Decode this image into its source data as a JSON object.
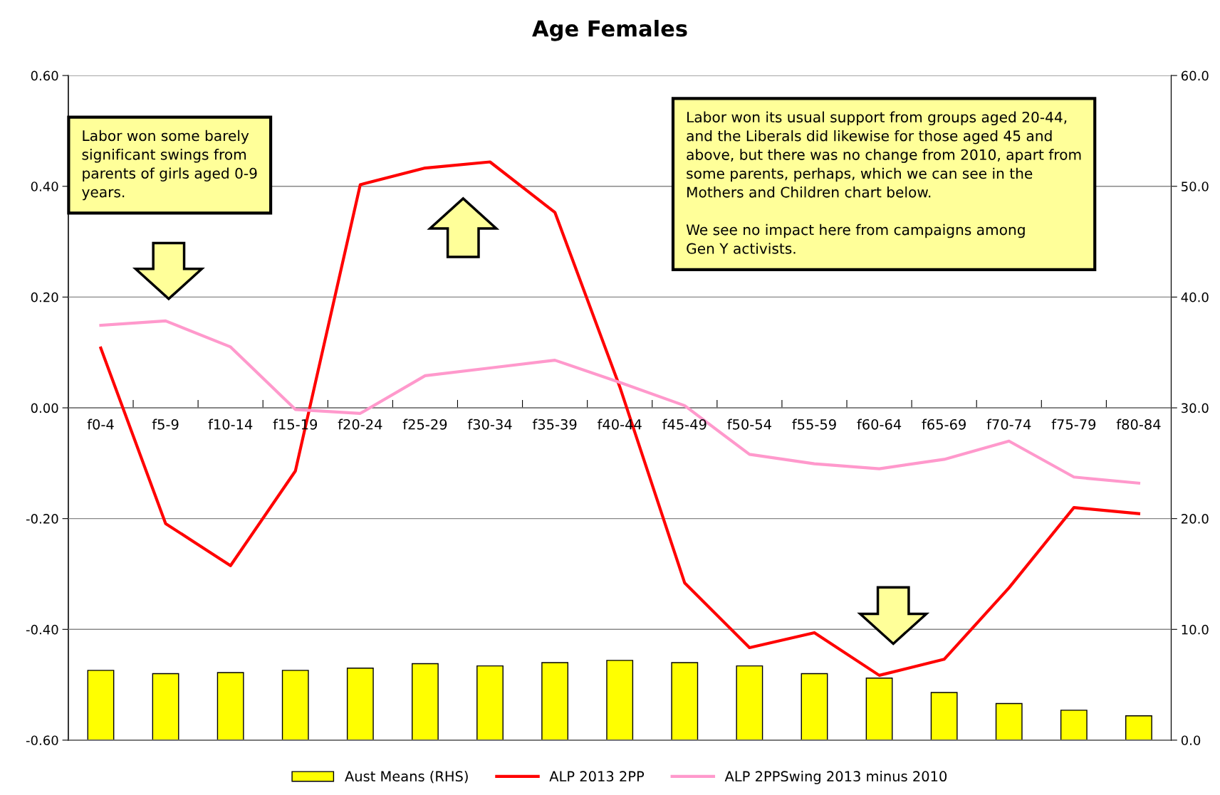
{
  "chart_data": {
    "type": "line",
    "title": "Age Females",
    "categories": [
      "f0-4",
      "f5-9",
      "f10-14",
      "f15-19",
      "f20-24",
      "f25-29",
      "f30-34",
      "f35-39",
      "f40-44",
      "f45-49",
      "f50-54",
      "f55-59",
      "f60-64",
      "f65-69",
      "f70-74",
      "f75-79",
      "f80-84"
    ],
    "series": [
      {
        "name": "Aust Means (RHS)",
        "type": "bar",
        "axis": "y2",
        "color": "#ffff00",
        "values": [
          6.3,
          6.0,
          6.1,
          6.3,
          6.5,
          6.9,
          6.7,
          7.0,
          7.2,
          7.0,
          6.7,
          6.0,
          5.6,
          4.3,
          3.3,
          2.7,
          2.2
        ]
      },
      {
        "name": "ALP 2013 2PP",
        "color": "#ff0000",
        "values": [
          0.108,
          -0.209,
          -0.285,
          -0.114,
          0.403,
          0.433,
          0.444,
          0.353,
          0.038,
          -0.316,
          -0.433,
          -0.406,
          -0.483,
          -0.454,
          -0.325,
          -0.18,
          -0.191
        ]
      },
      {
        "name": "ALP 2PPSwing 2013 minus 2010",
        "color": "#ff99cc",
        "values": [
          0.149,
          0.157,
          0.11,
          -0.003,
          -0.01,
          0.058,
          0.072,
          0.086,
          0.046,
          0.004,
          -0.084,
          -0.101,
          -0.11,
          -0.093,
          -0.06,
          -0.125,
          -0.136
        ]
      }
    ],
    "ylim": [
      -0.6,
      0.6
    ],
    "yticks": [
      {
        "value": -0.6,
        "label": "-0.60"
      },
      {
        "value": -0.4,
        "label": "-0.40"
      },
      {
        "value": -0.2,
        "label": "-0.20"
      },
      {
        "value": 0,
        "label": "0.00"
      },
      {
        "value": 0.2,
        "label": "0.20"
      },
      {
        "value": 0.4,
        "label": "0.40"
      },
      {
        "value": 0.6,
        "label": "0.60"
      }
    ],
    "y2lim": [
      0,
      60
    ],
    "y2ticks": [
      {
        "value": 0,
        "label": "0.0"
      },
      {
        "value": 10,
        "label": "10.0"
      },
      {
        "value": 20,
        "label": "20.0"
      },
      {
        "value": 30,
        "label": "30.0"
      },
      {
        "value": 40,
        "label": "40.0"
      },
      {
        "value": 50,
        "label": "50.0"
      },
      {
        "value": 60,
        "label": "60.0"
      }
    ],
    "grid": "y",
    "legend": "bottom",
    "marker": "none",
    "line_style": "solid",
    "annotations": [
      "Labor won some barely\nsignificant swings from\nparents of girls aged 0-9\nyears.",
      "Labor won its usual support from groups aged 20-44,\nand the Liberals did likewise for those aged 45 and\nabove, but there was no change from 2010, apart from\nsome parents, perhaps, which we can see in the\nMothers and Children chart below.\n\nWe see no impact here from campaigns among\nGen Y activists."
    ]
  }
}
